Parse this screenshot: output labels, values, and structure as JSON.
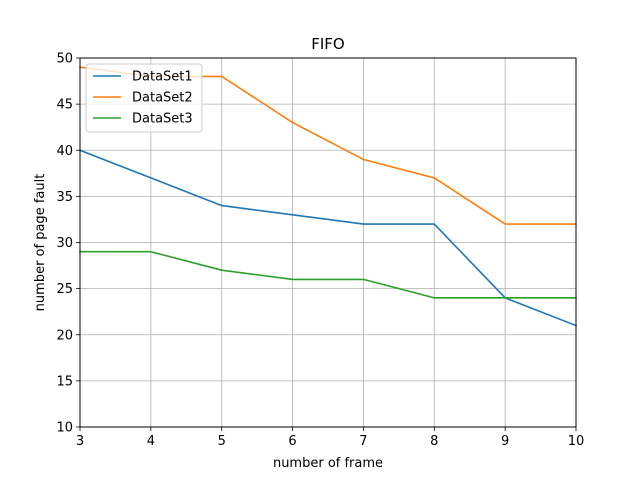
{
  "chart_data": {
    "type": "line",
    "title": "FIFO",
    "xlabel": "number of frame",
    "ylabel": "number of page fault",
    "x": [
      3,
      4,
      5,
      6,
      7,
      8,
      9,
      10
    ],
    "xlim": [
      3,
      10
    ],
    "ylim": [
      10,
      50
    ],
    "xticks": [
      3,
      4,
      5,
      6,
      7,
      8,
      9,
      10
    ],
    "yticks": [
      10,
      15,
      20,
      25,
      30,
      35,
      40,
      45,
      50
    ],
    "grid": true,
    "legend": "upper left",
    "series": [
      {
        "name": "DataSet1",
        "color": "#1f77b4",
        "values": [
          40,
          37,
          34,
          33,
          32,
          32,
          24,
          21
        ]
      },
      {
        "name": "DataSet2",
        "color": "#ff7f0e",
        "values": [
          49,
          48,
          48,
          43,
          39,
          37,
          32,
          32
        ]
      },
      {
        "name": "DataSet3",
        "color": "#2ca02c",
        "values": [
          29,
          29,
          27,
          26,
          26,
          24,
          24,
          24
        ]
      }
    ]
  }
}
